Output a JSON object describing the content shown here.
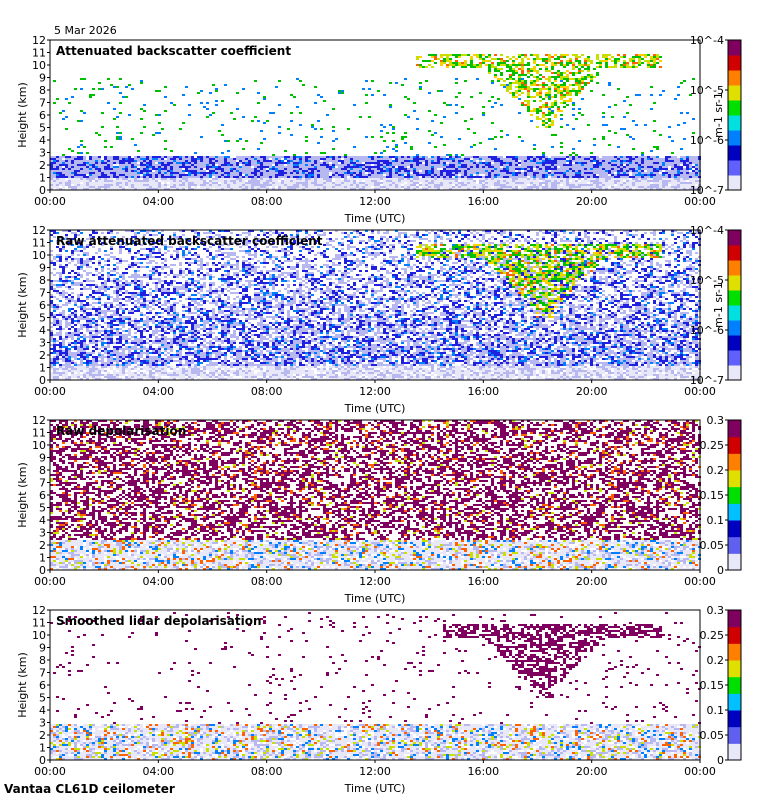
{
  "figure": {
    "date": "5 Mar 2026",
    "footer": "Vantaa CL61D ceilometer"
  },
  "colors": {
    "scale": [
      "#e8e8f8",
      "#b8b8f0",
      "#2020e0",
      "#0080ff",
      "#00c8c8",
      "#00c000",
      "#c8e000",
      "#ffd000",
      "#ff6000",
      "#d00000",
      "#800060"
    ],
    "depol_high": "#800060"
  },
  "chart_data": [
    {
      "type": "heatmap",
      "title": "Attenuated backscatter coefficient",
      "xlabel": "Time (UTC)",
      "ylabel": "Height (km)",
      "xticks": [
        "00:00",
        "04:00",
        "08:00",
        "12:00",
        "16:00",
        "20:00",
        "00:00"
      ],
      "yticks": [
        "0",
        "1",
        "2",
        "3",
        "4",
        "5",
        "6",
        "7",
        "8",
        "9",
        "10",
        "11",
        "12"
      ],
      "xlim_hours": [
        0,
        24
      ],
      "ylim_km": [
        0,
        12
      ],
      "colorbar": {
        "scale": "log",
        "ticks": [
          "10^-7",
          "10^-6",
          "10^-5",
          "10^-4"
        ],
        "unit": "m-1 sr-1"
      },
      "features": [
        {
          "kind": "boundary_layer",
          "from_km": 0,
          "to_km": 2.8,
          "level": "low"
        },
        {
          "kind": "cirrus",
          "start_h": 13.5,
          "end_h": 22.5,
          "base_km": 5,
          "top_km": 11,
          "level": "high"
        }
      ]
    },
    {
      "type": "heatmap",
      "title": "Raw attenuated backscatter coefficient",
      "xlabel": "Time (UTC)",
      "ylabel": "Height (km)",
      "xticks": [
        "00:00",
        "04:00",
        "08:00",
        "12:00",
        "16:00",
        "20:00",
        "00:00"
      ],
      "yticks": [
        "0",
        "1",
        "2",
        "3",
        "4",
        "5",
        "6",
        "7",
        "8",
        "9",
        "10",
        "11",
        "12"
      ],
      "xlim_hours": [
        0,
        24
      ],
      "ylim_km": [
        0,
        12
      ],
      "colorbar": {
        "scale": "log",
        "ticks": [
          "10^-7",
          "10^-6",
          "10^-5",
          "10^-4"
        ],
        "unit": "m-1 sr-1"
      },
      "features": [
        {
          "kind": "noise",
          "from_km": 0,
          "to_km": 12,
          "level": "low"
        },
        {
          "kind": "cirrus",
          "start_h": 13.5,
          "end_h": 22.5,
          "base_km": 5,
          "top_km": 11,
          "level": "high"
        }
      ]
    },
    {
      "type": "heatmap",
      "title": "Raw depolarisation",
      "xlabel": "Time (UTC)",
      "ylabel": "Height (km)",
      "xticks": [
        "00:00",
        "04:00",
        "08:00",
        "12:00",
        "16:00",
        "20:00",
        "00:00"
      ],
      "yticks": [
        "0",
        "1",
        "2",
        "3",
        "4",
        "5",
        "6",
        "7",
        "8",
        "9",
        "10",
        "11",
        "12"
      ],
      "xlim_hours": [
        0,
        24
      ],
      "ylim_km": [
        0,
        12
      ],
      "colorbar": {
        "scale": "linear",
        "range": [
          0,
          0.3
        ],
        "ticks": [
          "0",
          "0.05",
          "0.1",
          "0.15",
          "0.2",
          "0.25",
          "0.3"
        ]
      },
      "features": [
        {
          "kind": "noise",
          "from_km": 2.5,
          "to_km": 12,
          "level": "high"
        },
        {
          "kind": "boundary_layer",
          "from_km": 0,
          "to_km": 2.5,
          "level": "low"
        }
      ]
    },
    {
      "type": "heatmap",
      "title": "Smoothed lidar depolarisation",
      "xlabel": "Time (UTC)",
      "ylabel": "Height (km)",
      "xticks": [
        "00:00",
        "04:00",
        "08:00",
        "12:00",
        "16:00",
        "20:00",
        "00:00"
      ],
      "yticks": [
        "0",
        "1",
        "2",
        "3",
        "4",
        "5",
        "6",
        "7",
        "8",
        "9",
        "10",
        "11",
        "12"
      ],
      "xlim_hours": [
        0,
        24
      ],
      "ylim_km": [
        0,
        12
      ],
      "colorbar": {
        "scale": "linear",
        "range": [
          0,
          0.3
        ],
        "ticks": [
          "0",
          "0.05",
          "0.1",
          "0.15",
          "0.2",
          "0.25",
          "0.3"
        ]
      },
      "features": [
        {
          "kind": "boundary_layer",
          "from_km": 0,
          "to_km": 3,
          "level": "low"
        },
        {
          "kind": "cirrus",
          "start_h": 14.5,
          "end_h": 22.5,
          "base_km": 5,
          "top_km": 11,
          "level": "high"
        }
      ]
    }
  ]
}
